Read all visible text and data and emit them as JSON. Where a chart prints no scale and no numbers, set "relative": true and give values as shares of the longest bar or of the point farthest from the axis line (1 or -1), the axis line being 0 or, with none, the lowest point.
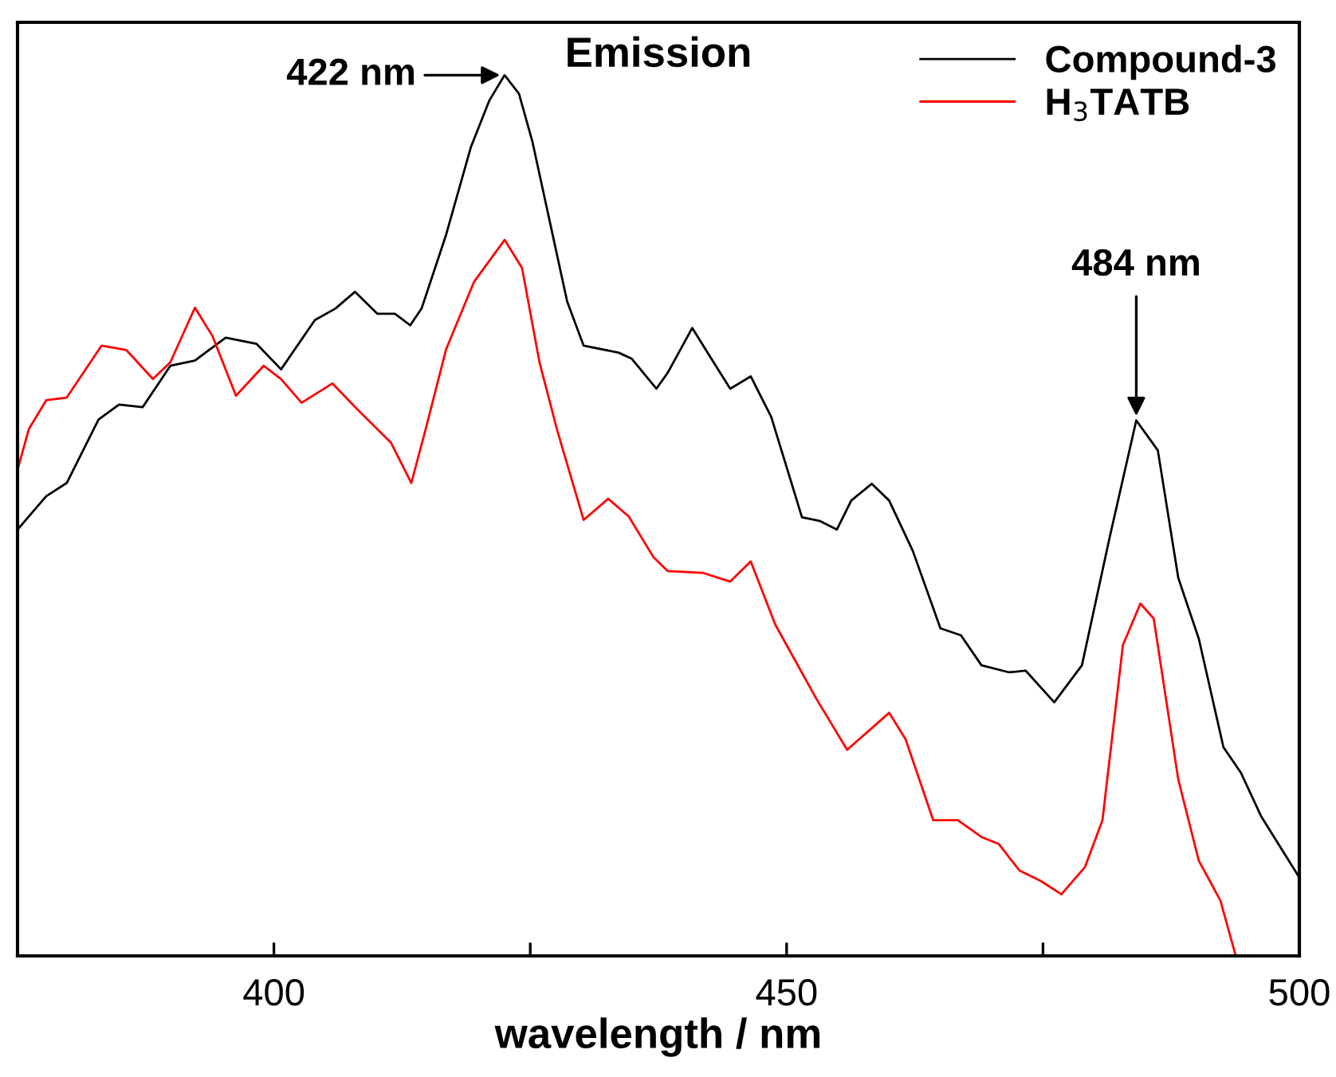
{
  "chart_data": {
    "type": "line",
    "title": "Emission",
    "xlabel": "wavelength / nm",
    "relative": true,
    "xlim": [
      375,
      500
    ],
    "xticks": [
      400,
      {
        "value": 425,
        "label": null
      },
      450,
      {
        "value": 475,
        "label": null
      },
      500
    ],
    "legend": "top right",
    "grid": false,
    "marker": "none",
    "line_style": "solid",
    "annotations": [
      {
        "text": "422 nm",
        "x": 422.5,
        "y": 1
      },
      {
        "text": "484 nm",
        "x": 484.1,
        "y": 0.608
      }
    ],
    "series": [
      {
        "name": "Compound-3",
        "color": "#000000",
        "x": [
          375,
          377.8,
          379.8,
          382.9,
          384.9,
          387.2,
          389.9,
          392.3,
          395.3,
          398.3,
          400.7,
          404.0,
          406.0,
          407.9,
          410.1,
          411.8,
          413.3,
          414.4,
          416.8,
          419.2,
          421.0,
          422.5,
          423.9,
          425.2,
          426.9,
          428.6,
          430.2,
          433.6,
          434.9,
          437.3,
          438.4,
          440.8,
          442.5,
          444.5,
          446.5,
          448.5,
          451.5,
          453.2,
          454.9,
          456.3,
          458.3,
          460.0,
          462.3,
          465.0,
          467.0,
          469.0,
          471.7,
          473.3,
          476.1,
          478.8,
          481.5,
          484.1,
          486.2,
          488.2,
          490.2,
          492.6,
          494.3,
          496.3,
          500
        ],
        "values": [
          0.484,
          0.522,
          0.537,
          0.609,
          0.626,
          0.623,
          0.67,
          0.676,
          0.702,
          0.695,
          0.666,
          0.722,
          0.735,
          0.754,
          0.729,
          0.729,
          0.716,
          0.735,
          0.819,
          0.918,
          0.971,
          1,
          0.979,
          0.925,
          0.834,
          0.743,
          0.693,
          0.685,
          0.678,
          0.644,
          0.662,
          0.713,
          0.681,
          0.644,
          0.658,
          0.612,
          0.498,
          0.494,
          0.484,
          0.517,
          0.536,
          0.517,
          0.46,
          0.372,
          0.364,
          0.33,
          0.322,
          0.324,
          0.288,
          0.33,
          0.475,
          0.608,
          0.574,
          0.429,
          0.36,
          0.237,
          0.208,
          0.158,
          0.089
        ]
      },
      {
        "name": "H$_{3}$TATB",
        "color": "#ff0000",
        "x": [
          375,
          376.1,
          377.8,
          379.8,
          383.2,
          385.6,
          388.2,
          389.9,
          392.3,
          394.0,
          396.3,
          399.0,
          400.7,
          402.7,
          405.7,
          408.1,
          411.4,
          413.4,
          414.8,
          416.8,
          419.5,
          422.5,
          424.2,
          425.9,
          427.6,
          430.2,
          432.6,
          434.6,
          437.0,
          438.4,
          441.8,
          444.5,
          446.5,
          448.9,
          452.9,
          455.9,
          460.0,
          461.6,
          464.3,
          466.7,
          469.0,
          470.7,
          472.7,
          474.8,
          476.8,
          479.1,
          480.8,
          482.8,
          484.5,
          485.8,
          488.2,
          490.2,
          492.3,
          493.8
        ],
        "values": [
          0.552,
          0.598,
          0.631,
          0.634,
          0.693,
          0.688,
          0.655,
          0.674,
          0.736,
          0.704,
          0.636,
          0.67,
          0.655,
          0.628,
          0.65,
          0.621,
          0.583,
          0.537,
          0.598,
          0.689,
          0.765,
          0.813,
          0.781,
          0.674,
          0.598,
          0.495,
          0.519,
          0.499,
          0.453,
          0.437,
          0.435,
          0.425,
          0.448,
          0.376,
          0.292,
          0.234,
          0.276,
          0.246,
          0.154,
          0.154,
          0.135,
          0.127,
          0.097,
          0.085,
          0.07,
          0.101,
          0.154,
          0.353,
          0.4,
          0.383,
          0.2,
          0.108,
          0.063,
          0
        ]
      }
    ]
  }
}
